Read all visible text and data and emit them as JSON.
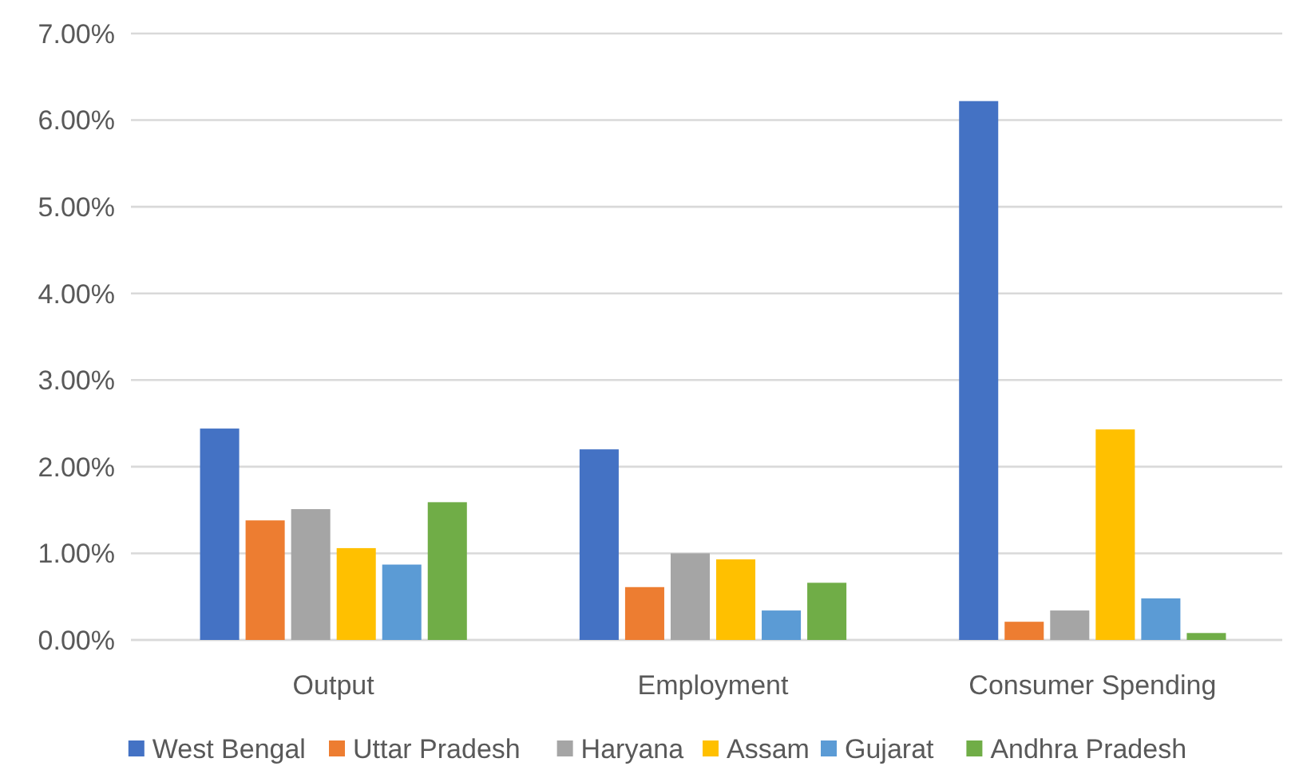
{
  "chart_data": {
    "type": "bar",
    "categories": [
      "Output",
      "Employment",
      "Consumer Spending"
    ],
    "series": [
      {
        "name": "West Bengal",
        "color": "#4472c4",
        "values": [
          2.44,
          2.2,
          6.22
        ]
      },
      {
        "name": "Uttar Pradesh",
        "color": "#ed7d31",
        "values": [
          1.38,
          0.61,
          0.21
        ]
      },
      {
        "name": "Haryana",
        "color": "#a5a5a5",
        "values": [
          1.51,
          1.0,
          0.34
        ]
      },
      {
        "name": "Assam",
        "color": "#ffc000",
        "values": [
          1.06,
          0.93,
          2.43
        ]
      },
      {
        "name": "Gujarat",
        "color": "#5b9bd5",
        "values": [
          0.87,
          0.34,
          0.48
        ]
      },
      {
        "name": "Andhra Pradesh",
        "color": "#70ad47",
        "values": [
          1.59,
          0.66,
          0.08
        ]
      }
    ],
    "ylim": [
      0,
      7
    ],
    "yticks": [
      {
        "value": 0,
        "label": "0.00%"
      },
      {
        "value": 1,
        "label": "1.00%"
      },
      {
        "value": 2,
        "label": "2.00%"
      },
      {
        "value": 3,
        "label": "3.00%"
      },
      {
        "value": 4,
        "label": "4.00%"
      },
      {
        "value": 5,
        "label": "5.00%"
      },
      {
        "value": 6,
        "label": "6.00%"
      },
      {
        "value": 7,
        "label": "7.00%"
      }
    ],
    "grid": "y",
    "legend": "bottom"
  }
}
